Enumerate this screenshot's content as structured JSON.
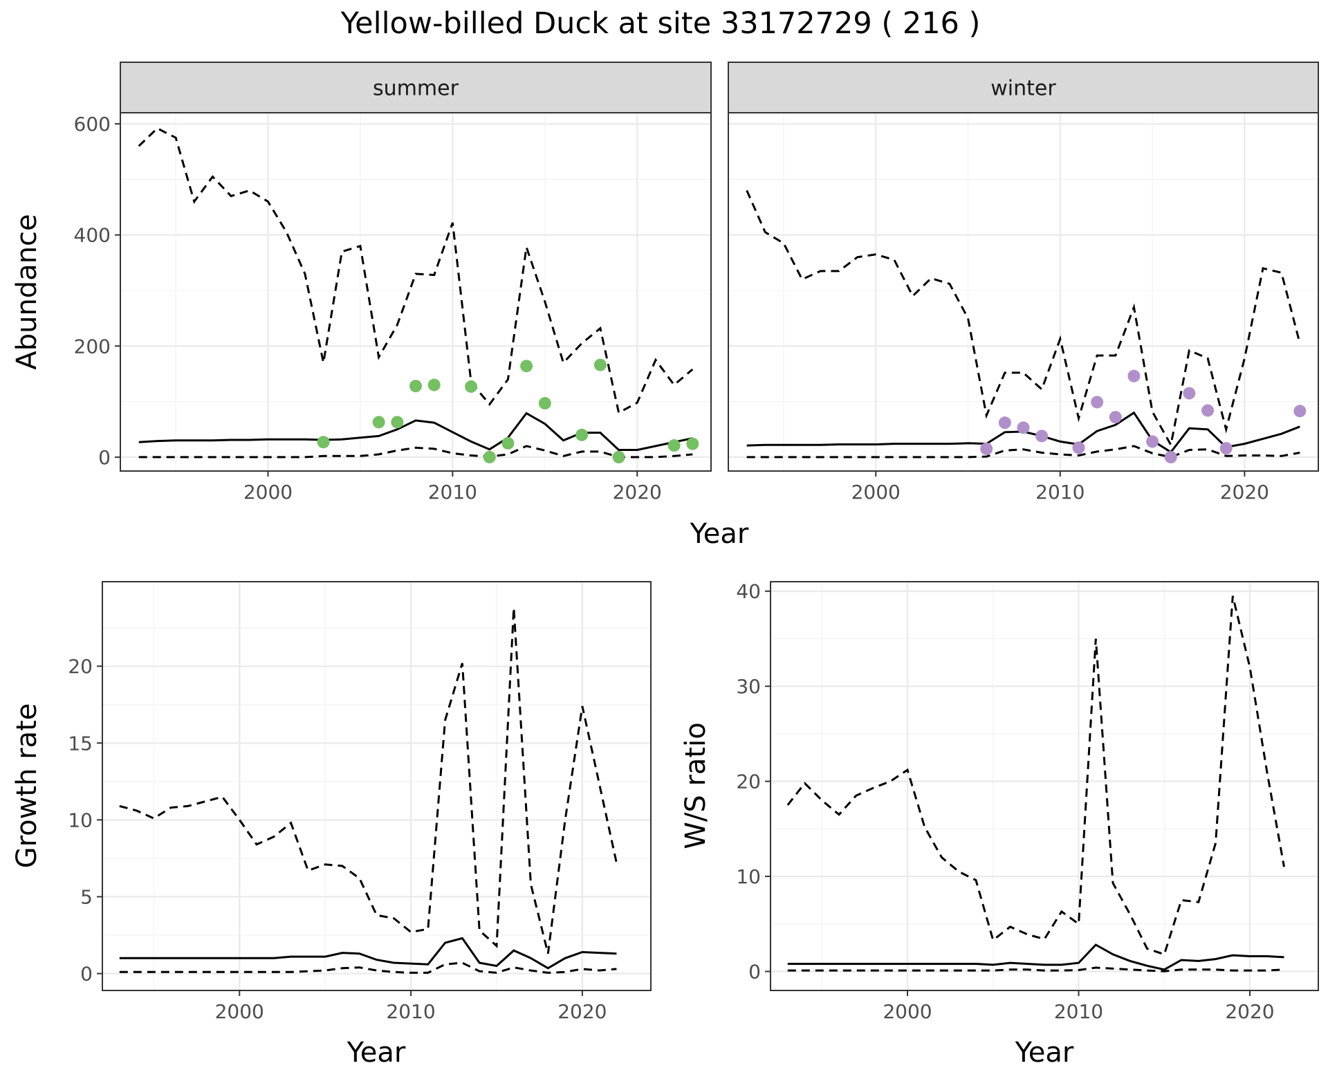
{
  "figure": {
    "title": "Yellow-billed Duck at site 33172729 ( 216 )"
  },
  "chart_data": [
    {
      "type": "line",
      "panel": "abundance-summer",
      "strip": "summer",
      "xlabel": "",
      "ylabel": "Abundance",
      "xlim": [
        1992,
        2024
      ],
      "ylim": [
        -25,
        620
      ],
      "xticks": [
        2000,
        2010,
        2020
      ],
      "yticks": [
        0,
        200,
        400,
        600
      ],
      "point_color": "#74c062",
      "years": [
        1993,
        1994,
        1995,
        1996,
        1997,
        1998,
        1999,
        2000,
        2001,
        2002,
        2003,
        2004,
        2005,
        2006,
        2007,
        2008,
        2009,
        2010,
        2011,
        2012,
        2013,
        2014,
        2015,
        2016,
        2017,
        2018,
        2019,
        2020,
        2021,
        2022,
        2023
      ],
      "mean": [
        27,
        29,
        30,
        30,
        30,
        31,
        31,
        32,
        32,
        32,
        31,
        32,
        35,
        38,
        50,
        66,
        62,
        45,
        28,
        14,
        35,
        79,
        60,
        30,
        44,
        44,
        13,
        13,
        20,
        27,
        34
      ],
      "lower": [
        0,
        0,
        0,
        0,
        0,
        0,
        0,
        0,
        0,
        0,
        2,
        2,
        2,
        5,
        12,
        17,
        15,
        7,
        3,
        1,
        5,
        20,
        12,
        2,
        10,
        10,
        0,
        0,
        0,
        2,
        5
      ],
      "upper": [
        560,
        592,
        575,
        460,
        505,
        470,
        480,
        460,
        405,
        330,
        170,
        370,
        380,
        180,
        238,
        330,
        328,
        422,
        135,
        95,
        140,
        378,
        280,
        170,
        205,
        232,
        80,
        98,
        175,
        130,
        158
      ],
      "points": [
        [
          2003,
          27
        ],
        [
          2006,
          63
        ],
        [
          2007,
          63
        ],
        [
          2008,
          128
        ],
        [
          2009,
          130
        ],
        [
          2011,
          127
        ],
        [
          2012,
          0
        ],
        [
          2013,
          25
        ],
        [
          2014,
          164
        ],
        [
          2015,
          97
        ],
        [
          2017,
          40
        ],
        [
          2018,
          166
        ],
        [
          2019,
          0
        ],
        [
          2022,
          21
        ],
        [
          2023,
          24
        ]
      ]
    },
    {
      "type": "line",
      "panel": "abundance-winter",
      "strip": "winter",
      "xlabel": "",
      "ylabel": "",
      "xlim": [
        1992,
        2024
      ],
      "ylim": [
        -25,
        620
      ],
      "xticks": [
        2000,
        2010,
        2020
      ],
      "yticks": [
        0,
        200,
        400,
        600
      ],
      "point_color": "#b18fcb",
      "years": [
        1993,
        1994,
        1995,
        1996,
        1997,
        1998,
        1999,
        2000,
        2001,
        2002,
        2003,
        2004,
        2005,
        2006,
        2007,
        2008,
        2009,
        2010,
        2011,
        2012,
        2013,
        2014,
        2015,
        2016,
        2017,
        2018,
        2019,
        2020,
        2021,
        2022,
        2023
      ],
      "mean": [
        21,
        22,
        22,
        22,
        22,
        23,
        23,
        23,
        24,
        24,
        24,
        24,
        25,
        24,
        45,
        46,
        38,
        28,
        23,
        47,
        58,
        80,
        30,
        9,
        52,
        50,
        18,
        24,
        33,
        42,
        55
      ],
      "lower": [
        0,
        0,
        0,
        0,
        0,
        0,
        0,
        0,
        0,
        0,
        0,
        0,
        0,
        1,
        12,
        14,
        8,
        5,
        3,
        10,
        14,
        20,
        7,
        0,
        13,
        14,
        2,
        3,
        3,
        2,
        8
      ],
      "upper": [
        480,
        405,
        385,
        320,
        335,
        335,
        360,
        365,
        355,
        290,
        322,
        312,
        250,
        75,
        152,
        152,
        122,
        213,
        70,
        183,
        183,
        270,
        82,
        22,
        192,
        178,
        50,
        178,
        340,
        332,
        205
      ],
      "points": [
        [
          2006,
          15
        ],
        [
          2007,
          62
        ],
        [
          2008,
          53
        ],
        [
          2009,
          38
        ],
        [
          2011,
          17
        ],
        [
          2012,
          99
        ],
        [
          2013,
          72
        ],
        [
          2014,
          146
        ],
        [
          2015,
          28
        ],
        [
          2016,
          0
        ],
        [
          2017,
          115
        ],
        [
          2018,
          84
        ],
        [
          2019,
          16
        ],
        [
          2023,
          83
        ]
      ]
    },
    {
      "type": "line",
      "panel": "growth-rate",
      "xlabel": "Year",
      "ylabel": "Growth rate",
      "xlim": [
        1992,
        2024
      ],
      "ylim": [
        -1.1,
        25.5
      ],
      "xticks": [
        2000,
        2010,
        2020
      ],
      "yticks": [
        0,
        5,
        10,
        15,
        20
      ],
      "years": [
        1993,
        1994,
        1995,
        1996,
        1997,
        1998,
        1999,
        2000,
        2001,
        2002,
        2003,
        2004,
        2005,
        2006,
        2007,
        2008,
        2009,
        2010,
        2011,
        2012,
        2013,
        2014,
        2015,
        2016,
        2017,
        2018,
        2019,
        2020,
        2021,
        2022
      ],
      "mean": [
        1.0,
        1.0,
        1.0,
        1.0,
        1.0,
        1.0,
        1.0,
        1.0,
        1.0,
        1.0,
        1.1,
        1.1,
        1.1,
        1.35,
        1.3,
        0.9,
        0.7,
        0.65,
        0.6,
        2.0,
        2.3,
        0.7,
        0.5,
        1.5,
        1.0,
        0.35,
        1.0,
        1.4,
        1.35,
        1.3
      ],
      "lower": [
        0.1,
        0.1,
        0.1,
        0.1,
        0.1,
        0.1,
        0.1,
        0.1,
        0.1,
        0.1,
        0.1,
        0.15,
        0.2,
        0.35,
        0.4,
        0.2,
        0.1,
        0.05,
        0.05,
        0.6,
        0.7,
        0.15,
        0.05,
        0.4,
        0.2,
        0.05,
        0.1,
        0.3,
        0.2,
        0.3
      ],
      "upper": [
        10.9,
        10.6,
        10.1,
        10.8,
        10.9,
        11.2,
        11.5,
        10.0,
        8.4,
        8.9,
        9.8,
        6.7,
        7.1,
        7.0,
        6.2,
        3.8,
        3.6,
        2.7,
        2.9,
        16.5,
        20.2,
        2.8,
        1.8,
        23.8,
        5.8,
        1.3,
        10.0,
        17.4,
        12.3,
        7.2
      ]
    },
    {
      "type": "line",
      "panel": "ws-ratio",
      "xlabel": "Year",
      "ylabel": "W/S ratio",
      "xlim": [
        1992,
        2024
      ],
      "ylim": [
        -2,
        41
      ],
      "xticks": [
        2000,
        2010,
        2020
      ],
      "yticks": [
        0,
        10,
        20,
        30,
        40
      ],
      "years": [
        1993,
        1994,
        1995,
        1996,
        1997,
        1998,
        1999,
        2000,
        2001,
        2002,
        2003,
        2004,
        2005,
        2006,
        2007,
        2008,
        2009,
        2010,
        2011,
        2012,
        2013,
        2014,
        2015,
        2016,
        2017,
        2018,
        2019,
        2020,
        2021,
        2022
      ],
      "mean": [
        0.8,
        0.8,
        0.8,
        0.8,
        0.8,
        0.8,
        0.8,
        0.8,
        0.8,
        0.8,
        0.8,
        0.8,
        0.7,
        0.9,
        0.8,
        0.7,
        0.7,
        0.9,
        2.8,
        1.8,
        1.1,
        0.6,
        0.2,
        1.2,
        1.1,
        1.3,
        1.7,
        1.6,
        1.6,
        1.5
      ],
      "lower": [
        0.1,
        0.1,
        0.1,
        0.1,
        0.1,
        0.1,
        0.1,
        0.1,
        0.1,
        0.1,
        0.1,
        0.1,
        0.1,
        0.2,
        0.2,
        0.1,
        0.1,
        0.15,
        0.4,
        0.3,
        0.2,
        0.1,
        0.02,
        0.2,
        0.2,
        0.2,
        0.1,
        0.1,
        0.1,
        0.2
      ],
      "upper": [
        17.5,
        19.8,
        18.0,
        16.5,
        18.5,
        19.3,
        20.0,
        21.2,
        15.2,
        12.0,
        10.5,
        9.6,
        3.3,
        4.7,
        3.9,
        3.4,
        6.3,
        5.0,
        35.0,
        9.3,
        6.0,
        2.4,
        1.8,
        7.5,
        7.3,
        13.5,
        39.5,
        32.0,
        21.0,
        11.0
      ]
    }
  ]
}
